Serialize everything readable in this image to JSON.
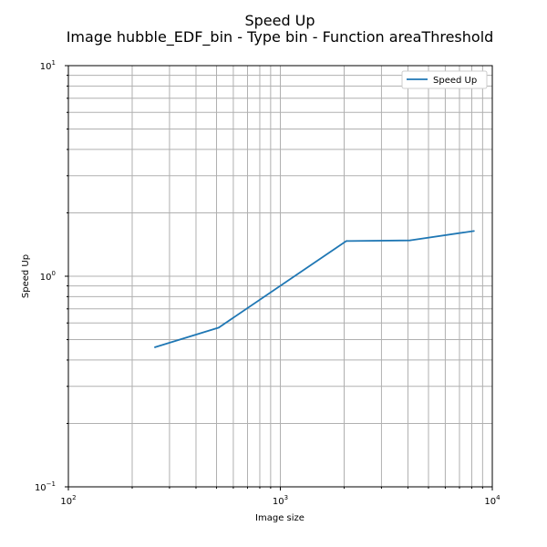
{
  "chart_data": {
    "type": "line",
    "title": "Speed Up",
    "subtitle": "Image hubble_EDF_bin - Type bin - Function areaThreshold",
    "xlabel": "Image size",
    "ylabel": "Speed Up",
    "xscale": "log",
    "yscale": "log",
    "xlim": [
      100,
      10000
    ],
    "ylim": [
      0.1,
      10
    ],
    "grid": "both major and minor",
    "legend_position": "top-right",
    "x_ticks": [
      {
        "base": "10",
        "exp": "2"
      },
      {
        "base": "10",
        "exp": "3"
      },
      {
        "base": "10",
        "exp": "4"
      }
    ],
    "y_ticks": [
      {
        "base": "10",
        "exp": "−1"
      },
      {
        "base": "10",
        "exp": "0"
      },
      {
        "base": "10",
        "exp": "1"
      }
    ],
    "series": [
      {
        "name": "Speed Up",
        "color": "#1f77b4",
        "x": [
          256,
          512,
          2048,
          4096,
          8192
        ],
        "y": [
          0.46,
          0.57,
          1.47,
          1.48,
          1.64
        ]
      }
    ]
  }
}
